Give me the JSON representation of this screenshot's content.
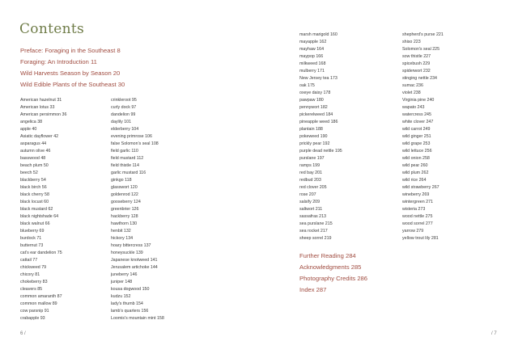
{
  "title": "Contents",
  "front_matter": [
    "Preface: Foraging in the Southeast  8",
    "Foraging: An Introduction  11",
    "Wild Harvests Season by Season  20",
    "Wild Edible Plants of the Southeast  30"
  ],
  "columns": [
    [
      "American hazelnut  31",
      "American lotus  33",
      "American persimmon  36",
      "angelica  38",
      "apple  40",
      "Asiatic dayflower  42",
      "asparagus  44",
      "autumn olive  46",
      "basswood  48",
      "beach plum  50",
      "beech  52",
      "blackberry  54",
      "black birch  56",
      "black cherry  58",
      "black locust  60",
      "black mustard  62",
      "black nightshade  64",
      "black walnut  66",
      "blueberry  69",
      "burdock  71",
      "butternut  73",
      "cat's ear dandelion  75",
      "cattail  77",
      "chickweed  79",
      "chicory  81",
      "chokeberry  83",
      "cleavers  85",
      "common amaranth  87",
      "common mallow  89",
      "cow parsnip  91",
      "crabapple  93"
    ],
    [
      "crinkleroot  95",
      "curly dock  97",
      "dandelion  99",
      "daylily  101",
      "elderberry  104",
      "evening primrose  106",
      "false Solomon's seal  108",
      "field garlic  110",
      "field mustard  112",
      "field thistle  114",
      "garlic mustard  116",
      "ginkgo  118",
      "glasswort  120",
      "goldenrod  122",
      "gooseberry  124",
      "greenbrier  126",
      "hackberry  128",
      "hawthorn  130",
      "henbit  132",
      "hickory  134",
      "hoary bittercress  137",
      "honeysuckle  139",
      "Japanese knotweed  141",
      "Jerusalem artichoke  144",
      "juneberry  146",
      "juniper  148",
      "kousa dogwood  150",
      "kudzu  152",
      "lady's thumb  154",
      "lamb's quarters  156",
      "Loomis's mountain mint  158"
    ],
    [
      "marsh marigold  160",
      "mayapple  162",
      "mayhaw  164",
      "maypop  166",
      "milkweed  168",
      "mulberry  171",
      "New Jersey tea  173",
      "oak  175",
      "oxeye daisy  178",
      "pawpaw  180",
      "pennywort  182",
      "pickerelweed  184",
      "pineapple weed  186",
      "plantain  188",
      "pokeweed  190",
      "prickly pear  192",
      "purple dead nettle  195",
      "purslane  197",
      "ramps  199",
      "red bay  201",
      "redbud  203",
      "red clover  205",
      "rose  207",
      "salsify  209",
      "saltwort  211",
      "sassafras  213",
      "sea purslane  215",
      "sea rocket  217",
      "sheep sorrel  219"
    ],
    [
      "shepherd's purse  221",
      "shiso  223",
      "Solomon's seal  225",
      "sow thistle  227",
      "spicebush  229",
      "spiderwort  232",
      "stinging nettle  234",
      "sumac  236",
      "violet  238",
      "Virginia pine  240",
      "wapato  243",
      "watercress  245",
      "white clover  247",
      "wild carrot  249",
      "wild ginger  251",
      "wild grape  253",
      "wild lettuce  256",
      "wild onion  258",
      "wild pear  260",
      "wild plum  262",
      "wild rice  264",
      "wild strawberry  267",
      "wineberry  269",
      "wintergreen  271",
      "wisteria  273",
      "wood nettle  275",
      "wood sorrel  277",
      "yarrow  279",
      "yellow trout lily  281"
    ]
  ],
  "back_matter": [
    "Further Reading  284",
    "Acknowledgments  285",
    "Photography Credits  286",
    "Index  287"
  ],
  "folios": {
    "left": "6 /",
    "right": "/ 7"
  },
  "colors": {
    "title": "#6f7c48",
    "headings": "#a04c40",
    "text": "#3a3a3a"
  }
}
